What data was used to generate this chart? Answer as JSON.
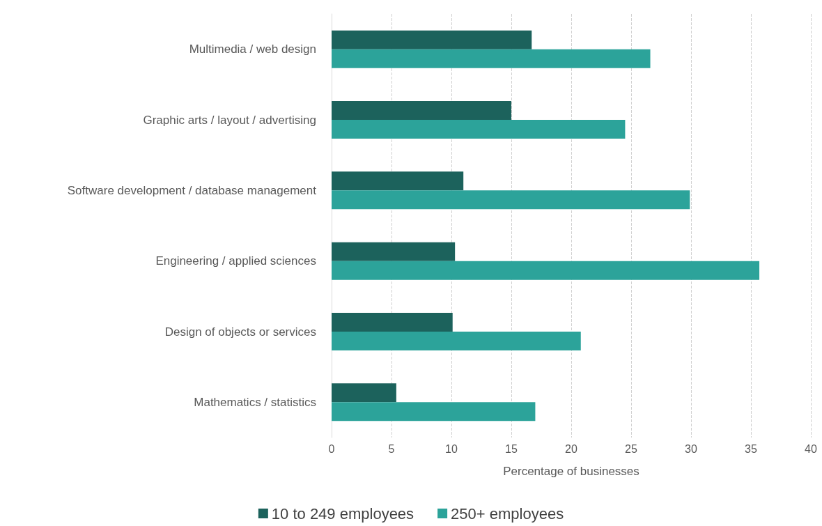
{
  "chart_data": {
    "type": "bar",
    "orientation": "horizontal",
    "xlabel": "Percentage of businesses",
    "categories": [
      "Multimedia / web design",
      "Graphic arts / layout / advertising",
      "Software development / database management",
      "Engineering / applied sciences",
      "Design of objects or services",
      "Mathematics / statistics"
    ],
    "series": [
      {
        "name": "10 to 249 employees",
        "color": "#1c625c",
        "values": [
          16.7,
          15.0,
          11.0,
          10.3,
          10.1,
          5.4
        ]
      },
      {
        "name": "250+ employees",
        "color": "#2ca39a",
        "values": [
          26.6,
          24.5,
          29.9,
          35.7,
          20.8,
          17.0
        ]
      }
    ],
    "xlim": [
      0,
      40
    ],
    "xticks": [
      0,
      5,
      10,
      15,
      20,
      25,
      30,
      35,
      40
    ],
    "grid": "x",
    "legend": "bottom"
  }
}
